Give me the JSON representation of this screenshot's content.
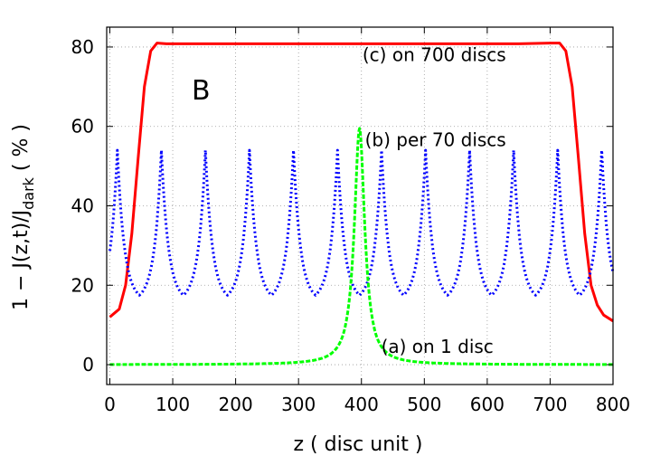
{
  "chart_data": {
    "type": "line",
    "panel_label": "B",
    "xlabel": "z  ( disc unit )",
    "ylabel": {
      "main": "1 − J(z,t)/J",
      "subscript": "dark",
      "suffix": "  ( % )"
    },
    "xlim": [
      -5,
      800
    ],
    "ylim": [
      -5,
      85
    ],
    "x_ticks": [
      0,
      100,
      200,
      300,
      400,
      500,
      600,
      700,
      800
    ],
    "y_ticks": [
      0,
      20,
      40,
      60,
      80
    ],
    "grid": true,
    "series": [
      {
        "name": "(c) on 700 discs",
        "color": "#ff0000",
        "style": "solid",
        "x": [
          0,
          15,
          25,
          35,
          45,
          55,
          65,
          75,
          90,
          150,
          250,
          350,
          450,
          550,
          650,
          700,
          715,
          725,
          735,
          745,
          755,
          765,
          775,
          785,
          800
        ],
        "y": [
          12,
          14,
          20,
          33,
          52,
          70,
          79,
          81,
          80.8,
          80.8,
          80.8,
          80.8,
          80.8,
          80.8,
          80.8,
          81,
          81,
          79,
          70,
          52,
          33,
          20,
          15,
          12.5,
          11
        ]
      },
      {
        "name": "(b) per 70 discs",
        "color": "#0000ff",
        "style": "dotted",
        "period": 70,
        "peak_offset": 12,
        "peak_value": 54,
        "trough_value": 17.5
      },
      {
        "name": "(a) on 1 disc",
        "color": "#00ff00",
        "style": "dashed",
        "center": 397,
        "peak_value": 59.5,
        "width": 10,
        "baseline": 0
      }
    ],
    "annotations": [
      {
        "text": "(c) on 700 discs",
        "x": 630,
        "y": 76.5,
        "series": 0
      },
      {
        "text": "(b) per 70 discs",
        "x": 630,
        "y": 55,
        "series": 1
      },
      {
        "text": "(a) on 1 disc",
        "x": 610,
        "y": 3,
        "series": 2
      }
    ]
  }
}
